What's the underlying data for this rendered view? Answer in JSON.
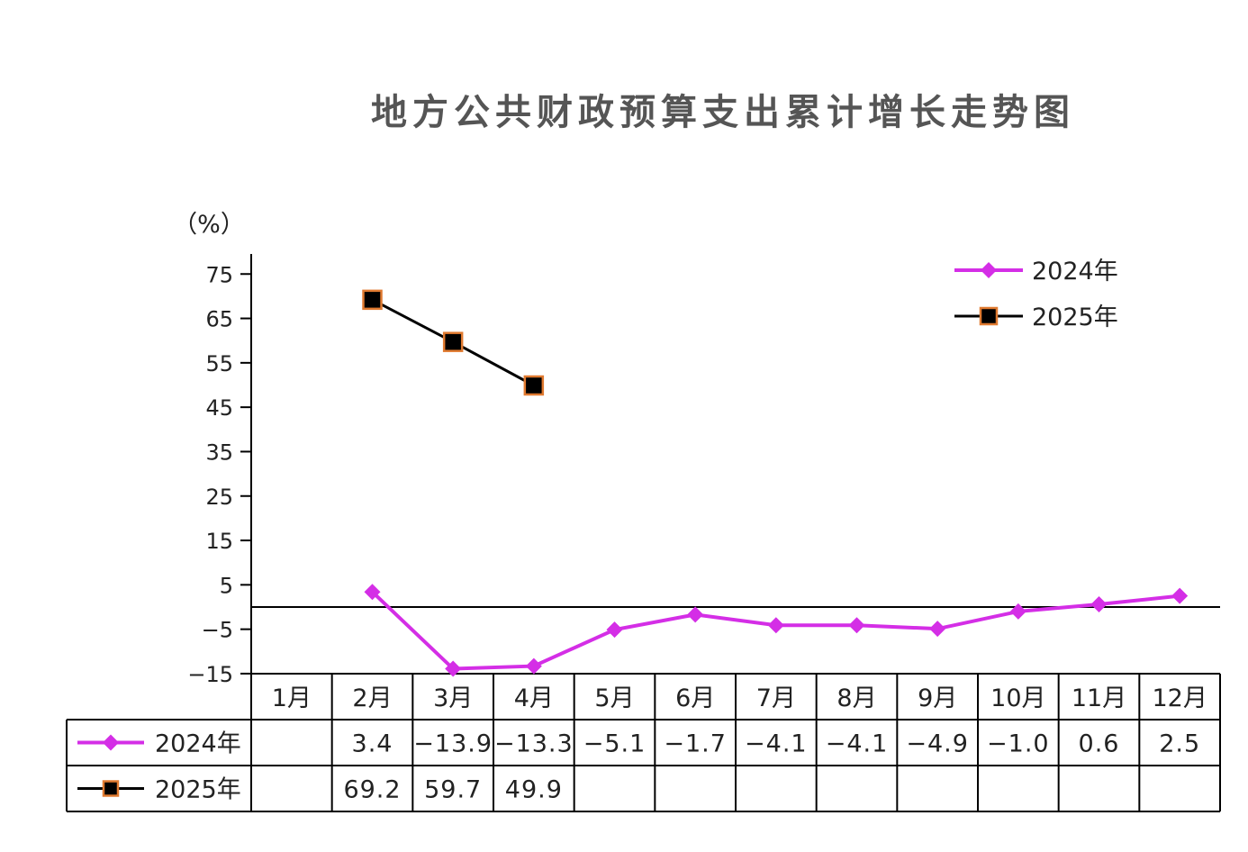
{
  "chart_data": {
    "type": "line",
    "title": "地方公共财政预算支出累计增长走势图",
    "ylabel": "（%）",
    "ylim": [
      -15,
      80
    ],
    "yticks": [
      75,
      65,
      55,
      45,
      35,
      25,
      15,
      5,
      -5,
      -15
    ],
    "ytick_labels": [
      "75",
      "65",
      "55",
      "45",
      "35",
      "25",
      "15",
      "5",
      "−5",
      "−15"
    ],
    "categories": [
      "1月",
      "2月",
      "3月",
      "4月",
      "5月",
      "6月",
      "7月",
      "8月",
      "9月",
      "10月",
      "11月",
      "12月"
    ],
    "legend_position": "top-right",
    "series": [
      {
        "name": "2024年",
        "color": "#d42ee6",
        "marker": "diamond",
        "values": [
          null,
          3.4,
          -13.9,
          -13.3,
          -5.1,
          -1.7,
          -4.1,
          -4.1,
          -4.9,
          -1.0,
          0.6,
          2.5
        ],
        "labels": [
          "",
          "3.4",
          "−13.9",
          "−13.3",
          "−5.1",
          "−1.7",
          "−4.1",
          "−4.1",
          "−4.9",
          "−1.0",
          "0.6",
          "2.5"
        ]
      },
      {
        "name": "2025年",
        "color": "#000000",
        "marker_edge": "#e07a30",
        "marker": "square",
        "values": [
          null,
          69.2,
          59.7,
          49.9,
          null,
          null,
          null,
          null,
          null,
          null,
          null,
          null
        ],
        "labels": [
          "",
          "69.2",
          "59.7",
          "49.9",
          "",
          "",
          "",
          "",
          "",
          "",
          "",
          ""
        ]
      }
    ]
  }
}
